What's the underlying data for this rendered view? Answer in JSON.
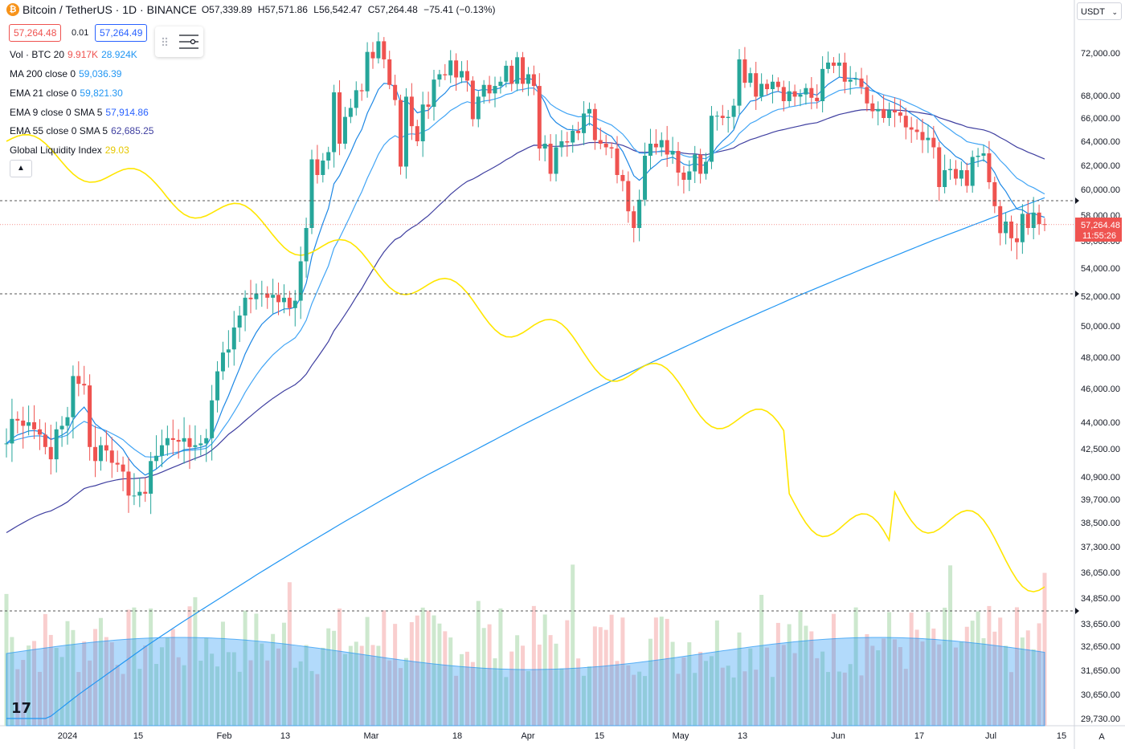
{
  "header": {
    "icon": "bitcoin-icon",
    "symbol": "Bitcoin / TetherUS · 1D · BINANCE",
    "open_label": "O",
    "open": "57,339.89",
    "high_label": "H",
    "high": "57,571.86",
    "low_label": "L",
    "low": "56,542.47",
    "close_label": "C",
    "close": "57,264.48",
    "change": "−75.41 (−0.13%)"
  },
  "trade": {
    "sell": "57,264.48",
    "spread": "0.01",
    "buy": "57,264.49"
  },
  "legend": [
    {
      "label": "Vol · BTC 20",
      "value": "9.917K",
      "value2": "28.924K",
      "color": "#ef5350",
      "color2": "#2196f3"
    },
    {
      "label": "MA 200 close 0",
      "value": "59,036.39",
      "color": "#2196f3"
    },
    {
      "label": "EMA 21 close 0",
      "value": "59,821.30",
      "color": "#2196f3"
    },
    {
      "label": "EMA 9 close 0 SMA 5",
      "value": "57,914.86",
      "color": "#2962ff"
    },
    {
      "label": "EMA 55 close 0 SMA 5",
      "value": "62,685.25",
      "color": "#3f3fa0"
    },
    {
      "label": "Global Liquidity Index",
      "value": "29.03",
      "color": "#e6c800"
    }
  ],
  "currency": "USDT",
  "last_price": "57,264.48",
  "countdown": "11:55:26",
  "auto_label": "A",
  "colors": {
    "up": "#26a69a",
    "down": "#ef5350",
    "ma200": "#2196f3",
    "ema21": "#42a5f5",
    "ema9": "#1e88e5",
    "ema55": "#3f3fa0",
    "gli": "#ffeb3b"
  },
  "chart_data": {
    "type": "candlestick",
    "title": "Bitcoin / TetherUS · 1D · BINANCE",
    "x_ticks": [
      "2024",
      "15",
      "Feb",
      "13",
      "Mar",
      "18",
      "Apr",
      "15",
      "May",
      "13",
      "Jun",
      "17",
      "Jul",
      "15"
    ],
    "y_ticks": [
      "72,000.00",
      "68,000.00",
      "66,000.00",
      "64,000.00",
      "62,000.00",
      "60,000.00",
      "58,000.00",
      "56,000.00",
      "54,000.00",
      "52,000.00",
      "50,000.00",
      "48,000.00",
      "46,000.00",
      "44,000.00",
      "42,500.00",
      "40,900.00",
      "39,700.00",
      "38,500.00",
      "37,300.00",
      "36,050.00",
      "34,850.00",
      "33,650.00",
      "32,650.00",
      "31,650.00",
      "30,650.00",
      "29,730.00"
    ],
    "close_series": [
      42800,
      44200,
      44100,
      43800,
      44000,
      43600,
      43300,
      42600,
      41900,
      43600,
      43800,
      44300,
      46800,
      46300,
      46200,
      42600,
      41800,
      42700,
      42400,
      41700,
      41600,
      41200,
      39900,
      39900,
      40100,
      40000,
      41800,
      42100,
      42700,
      43100,
      43000,
      42900,
      43100,
      42600,
      42700,
      42800,
      43100,
      45300,
      47100,
      48300,
      48500,
      49900,
      50700,
      51900,
      51800,
      52200,
      52200,
      51900,
      52100,
      51600,
      51900,
      51200,
      51700,
      54500,
      57000,
      62500,
      61200,
      62400,
      63100,
      68300,
      63800,
      66100,
      66900,
      68500,
      68400,
      72100,
      71500,
      73100,
      71400,
      69000,
      67600,
      61900,
      67900,
      65300,
      64000,
      67200,
      67000,
      69500,
      70000,
      69900,
      71300,
      69700,
      70300,
      69400,
      65900,
      67900,
      69000,
      68200,
      68900,
      69300,
      70800,
      69100,
      71600,
      69100,
      70000,
      68900,
      63400,
      63800,
      61300,
      63500,
      64000,
      63900,
      64900,
      64700,
      66400,
      66800,
      64100,
      63800,
      63500,
      63400,
      61200,
      60700,
      58300,
      57000,
      59200,
      62800,
      63800,
      63500,
      64100,
      62900,
      63200,
      61400,
      60800,
      61500,
      62900,
      61300,
      62300,
      66200,
      66200,
      66000,
      66100,
      67100,
      71400,
      69200,
      70100,
      67900,
      69100,
      68600,
      69300,
      68800,
      67500,
      68400,
      67900,
      68100,
      68700,
      67800,
      67500,
      70500,
      71100,
      70800,
      71100,
      69300,
      69500,
      69600,
      68800,
      67300,
      66600,
      66800,
      66000,
      66700,
      66500,
      66200,
      65200,
      65000,
      64800,
      64100,
      64300,
      63500,
      60200,
      61600,
      61700,
      60900,
      61600,
      60300,
      62700,
      62800,
      63000,
      60600,
      58700,
      56600,
      57500,
      56200,
      55900,
      58100,
      57000,
      58200,
      57300,
      57264
    ],
    "volume_note": "volume histogram at bottom"
  }
}
